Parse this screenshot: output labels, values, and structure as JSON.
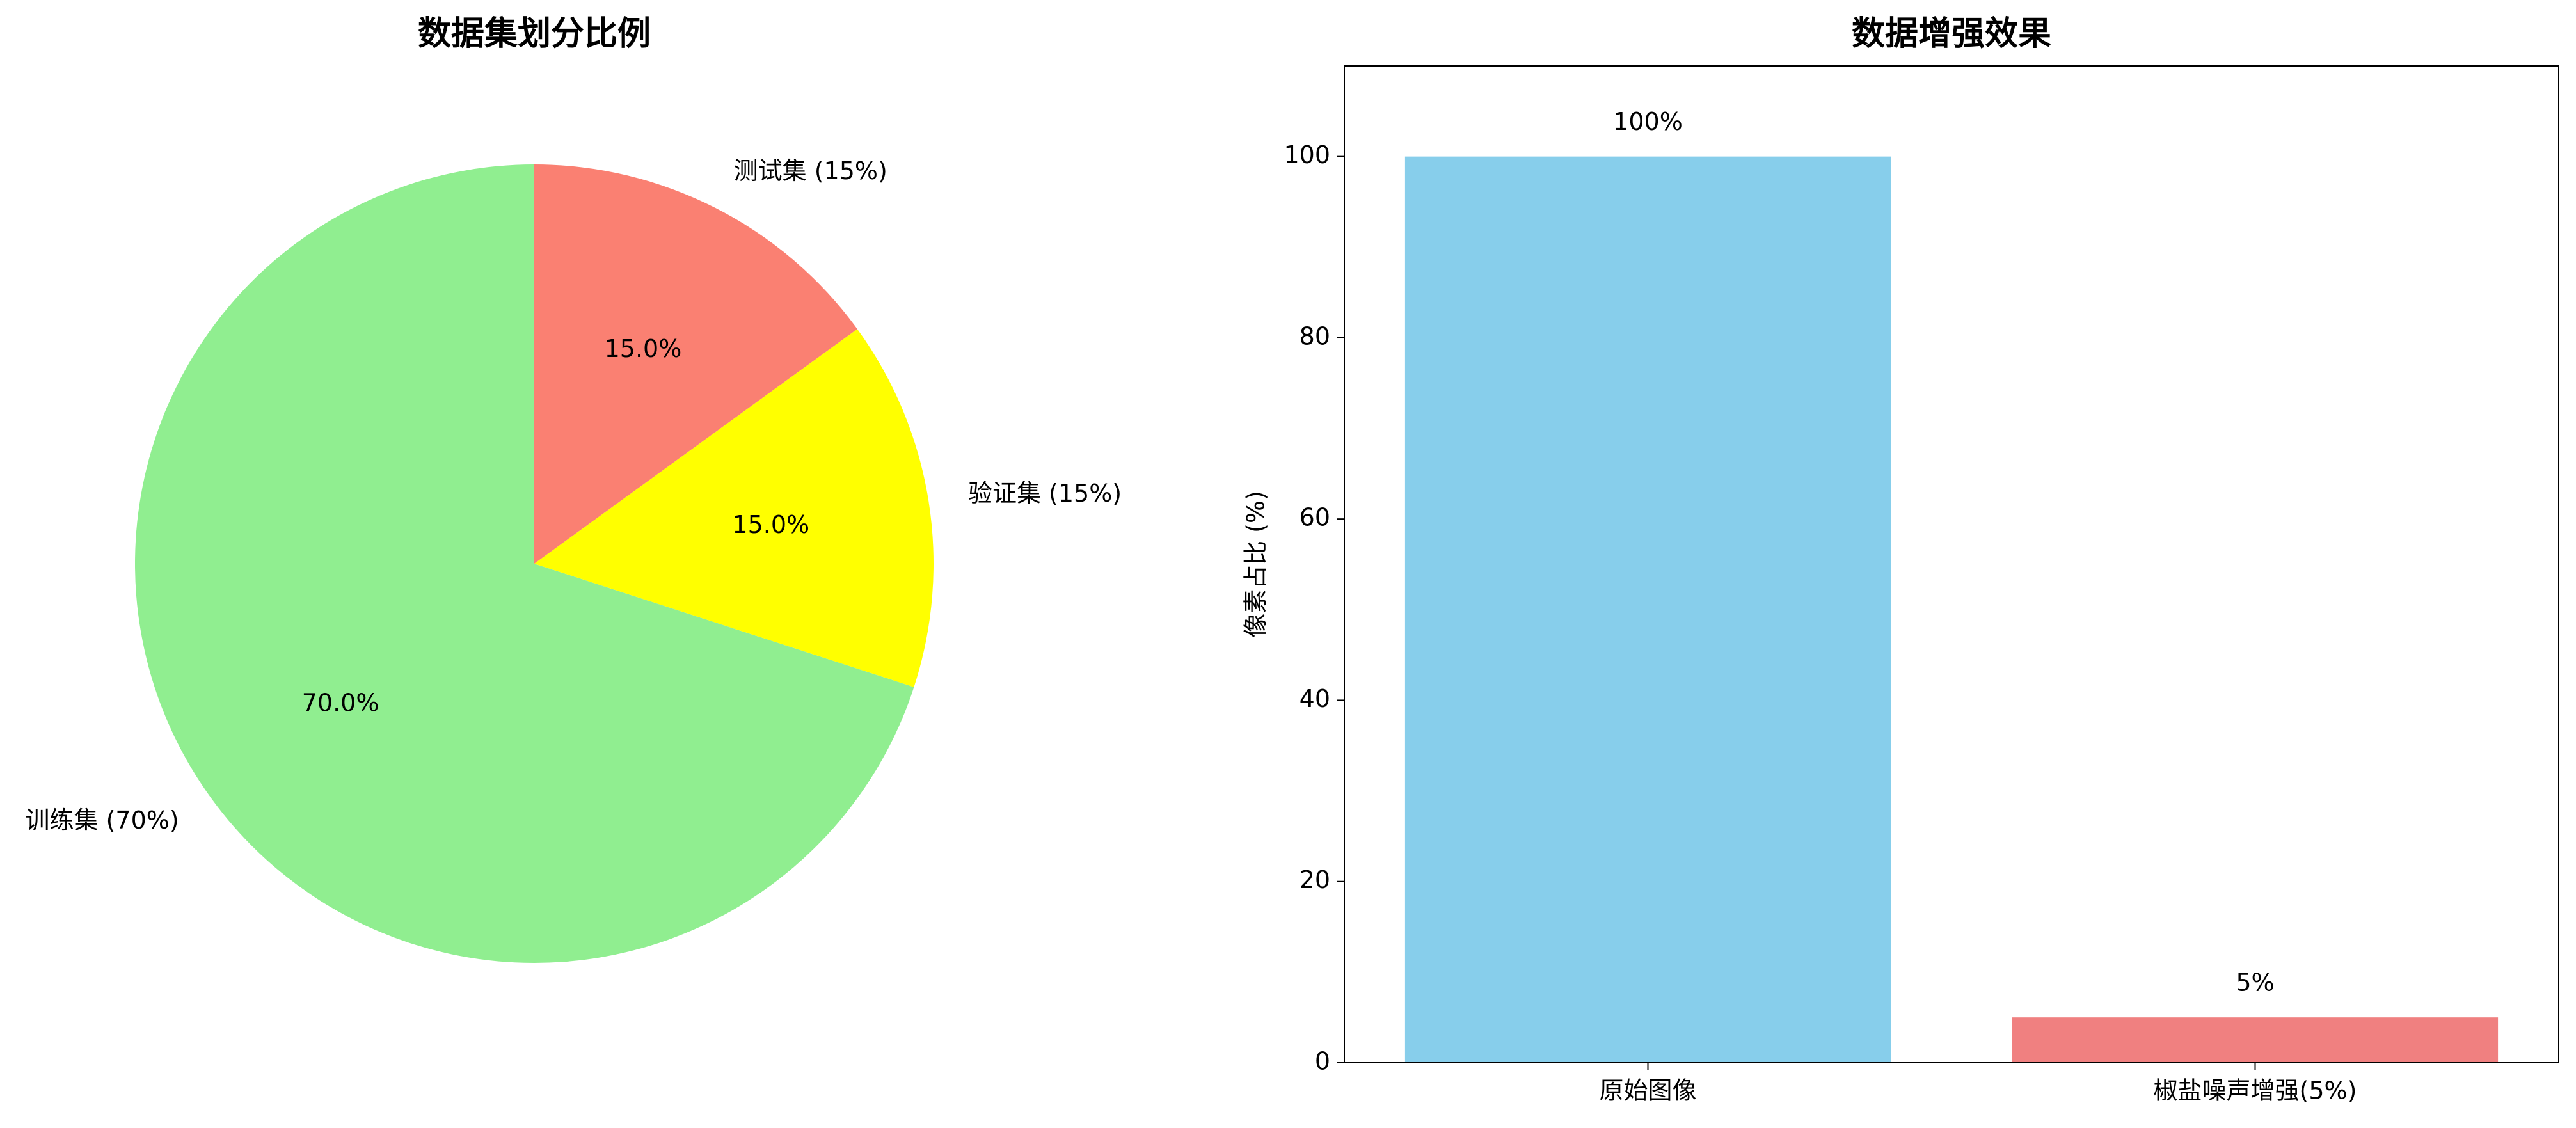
{
  "chart_data": [
    {
      "type": "pie",
      "title": "数据集划分比例",
      "categories": [
        "训练集 (70%)",
        "验证集 (15%)",
        "测试集 (15%)"
      ],
      "values": [
        70,
        15,
        15
      ],
      "value_labels": [
        "70.0%",
        "15.0%",
        "15.0%"
      ],
      "colors": [
        "#90ee90",
        "#ffff00",
        "#fa8072"
      ],
      "start_angle": 90,
      "direction": "counterclockwise"
    },
    {
      "type": "bar",
      "title": "数据增强效果",
      "categories": [
        "原始图像",
        "椒盐噪声增强(5%)"
      ],
      "values": [
        100,
        5
      ],
      "value_labels": [
        "100%",
        "5%"
      ],
      "colors": [
        "#87ceeb",
        "#f08080"
      ],
      "y_label": "像素占比 (%)",
      "ylim": [
        0,
        110
      ],
      "yticks": [
        0,
        20,
        40,
        60,
        80,
        100
      ]
    }
  ]
}
